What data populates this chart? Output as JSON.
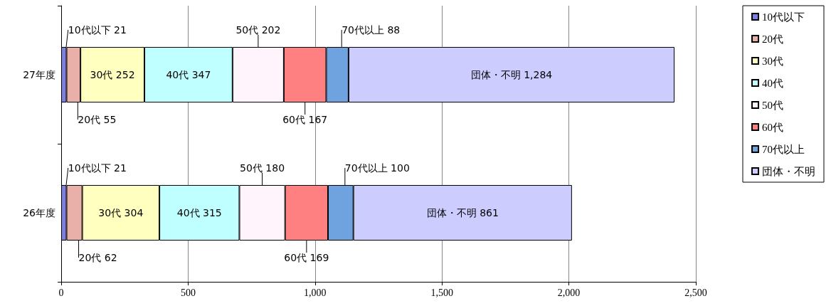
{
  "chart_data": {
    "type": "bar",
    "orientation": "horizontal",
    "stacked": true,
    "categories": [
      "27年度",
      "26年度"
    ],
    "xlim": [
      0,
      2500
    ],
    "xticks": [
      0,
      500,
      {
        "value": 1000,
        "label": "1,000"
      },
      {
        "value": 1500,
        "label": "1,500"
      },
      {
        "value": 2000,
        "label": "2,000"
      },
      {
        "value": 2500,
        "label": "2,500"
      }
    ],
    "grid": "x",
    "legend": "right",
    "series": [
      {
        "name": "10代以下",
        "color": "#7f7fe0",
        "values": [
          21,
          21
        ],
        "value_labels": [
          "10代以下 21",
          "10代以下 21"
        ]
      },
      {
        "name": "20代",
        "color": "#e8b0a8",
        "values": [
          55,
          62
        ],
        "value_labels": [
          "20代 55",
          "20代 62"
        ]
      },
      {
        "name": "30代",
        "color": "#ffffc0",
        "values": [
          252,
          304
        ],
        "value_labels": [
          "30代 252",
          "30代 304"
        ]
      },
      {
        "name": "40代",
        "color": "#c0ffff",
        "values": [
          347,
          315
        ],
        "value_labels": [
          "40代 347",
          "40代 315"
        ]
      },
      {
        "name": "50代",
        "color": "#fff4fb",
        "values": [
          202,
          180
        ],
        "value_labels": [
          "50代 202",
          "50代 180"
        ]
      },
      {
        "name": "60代",
        "color": "#ff8080",
        "values": [
          167,
          169
        ],
        "value_labels": [
          "60代 167",
          "60代 169"
        ]
      },
      {
        "name": "70代以上",
        "color": "#6fa3e0",
        "values": [
          88,
          100
        ],
        "value_labels": [
          "70代以上 88",
          "70代以上 100"
        ]
      },
      {
        "name": "団体・不明",
        "color": "#ccccff",
        "values": [
          1284,
          861
        ],
        "value_labels": [
          "団体・不明 1,284",
          "団体・不明 861"
        ]
      }
    ]
  }
}
